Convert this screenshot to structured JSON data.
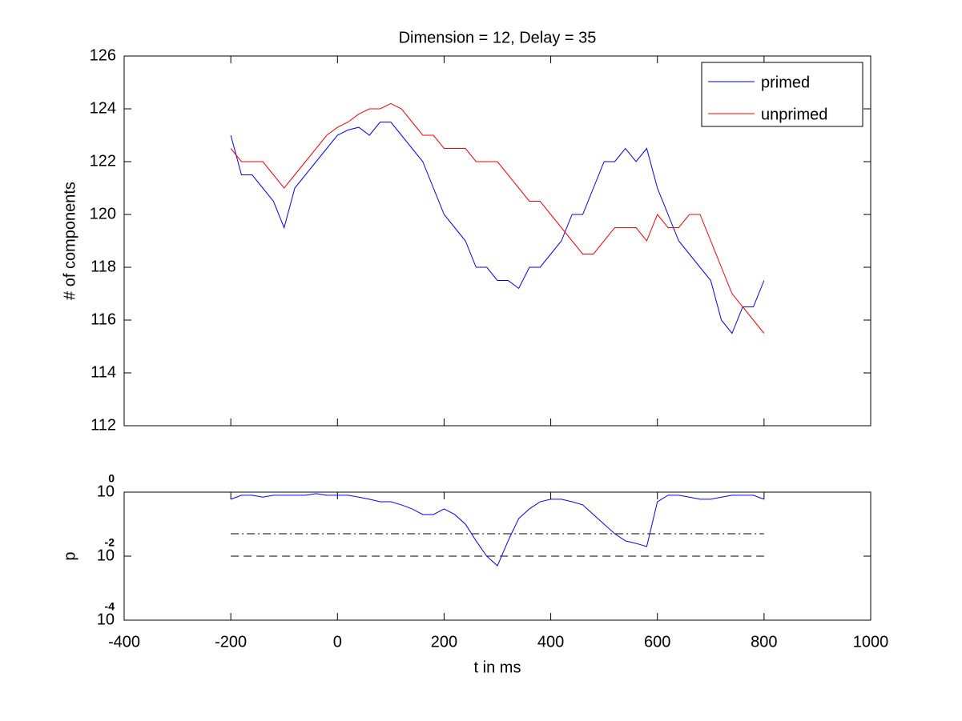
{
  "chart_data": [
    {
      "type": "line",
      "title": "Dimension  = 12, Delay = 35",
      "ylabel": "# of components",
      "x": [
        -200,
        -180,
        -160,
        -140,
        -120,
        -100,
        -80,
        -60,
        -40,
        -20,
        0,
        20,
        40,
        60,
        80,
        100,
        120,
        140,
        160,
        180,
        200,
        220,
        240,
        260,
        280,
        300,
        320,
        340,
        360,
        380,
        400,
        420,
        440,
        460,
        480,
        500,
        520,
        540,
        560,
        580,
        600,
        620,
        640,
        660,
        680,
        700,
        720,
        740,
        760,
        780,
        800
      ],
      "series": [
        {
          "name": "primed",
          "color": "#0000ff",
          "values": [
            123.0,
            121.5,
            121.5,
            121.0,
            120.5,
            119.5,
            121.0,
            121.5,
            122.0,
            122.5,
            123.0,
            123.2,
            123.3,
            123.0,
            123.5,
            123.5,
            123.0,
            122.5,
            122.0,
            121.0,
            120.0,
            119.5,
            119.0,
            118.0,
            118.0,
            117.5,
            117.5,
            117.2,
            118.0,
            118.0,
            118.5,
            119.0,
            120.0,
            120.0,
            121.0,
            122.0,
            122.0,
            122.5,
            122.0,
            122.5,
            121.0,
            120.0,
            119.0,
            118.5,
            118.0,
            117.5,
            116.0,
            115.5,
            116.5,
            116.5,
            117.5
          ]
        },
        {
          "name": "unprimed",
          "color": "#ff0000",
          "values": [
            122.5,
            122.0,
            122.0,
            122.0,
            121.5,
            121.0,
            121.5,
            122.0,
            122.5,
            123.0,
            123.3,
            123.5,
            123.8,
            124.0,
            124.0,
            124.2,
            124.0,
            123.5,
            123.0,
            123.0,
            122.5,
            122.5,
            122.5,
            122.0,
            122.0,
            122.0,
            121.5,
            121.0,
            120.5,
            120.5,
            120.0,
            119.5,
            119.0,
            118.5,
            118.5,
            119.0,
            119.5,
            119.5,
            119.5,
            119.0,
            120.0,
            119.5,
            119.5,
            120.0,
            120.0,
            119.0,
            118.0,
            117.0,
            116.5,
            116.0,
            115.5
          ]
        }
      ],
      "xlim": [
        -400,
        1000
      ],
      "xticks": [
        -400,
        -200,
        0,
        200,
        400,
        600,
        800,
        1000
      ],
      "ylim": [
        112,
        126
      ],
      "yticks": [
        112,
        114,
        116,
        118,
        120,
        122,
        124,
        126
      ],
      "legend": "upper right"
    },
    {
      "type": "line",
      "ylabel": "p",
      "xlabel": "t in ms",
      "log_y": true,
      "x": [
        -200,
        -180,
        -160,
        -140,
        -120,
        -100,
        -80,
        -60,
        -40,
        -20,
        0,
        20,
        40,
        60,
        80,
        100,
        120,
        140,
        160,
        180,
        200,
        220,
        240,
        260,
        280,
        300,
        320,
        340,
        360,
        380,
        400,
        420,
        440,
        460,
        480,
        500,
        520,
        540,
        560,
        580,
        600,
        620,
        640,
        660,
        680,
        700,
        720,
        740,
        760,
        780,
        800
      ],
      "series": [
        {
          "color": "#0000ff",
          "values": [
            0.6,
            0.8,
            0.8,
            0.7,
            0.8,
            0.8,
            0.8,
            0.8,
            0.9,
            0.8,
            0.8,
            0.8,
            0.7,
            0.6,
            0.5,
            0.5,
            0.4,
            0.3,
            0.2,
            0.2,
            0.3,
            0.2,
            0.1,
            0.03,
            0.01,
            0.005,
            0.03,
            0.15,
            0.3,
            0.5,
            0.6,
            0.6,
            0.5,
            0.4,
            0.2,
            0.1,
            0.05,
            0.03,
            0.025,
            0.02,
            0.5,
            0.8,
            0.8,
            0.7,
            0.6,
            0.6,
            0.7,
            0.8,
            0.8,
            0.8,
            0.6
          ]
        }
      ],
      "hlines": [
        {
          "value": 0.05,
          "style": "dashdot",
          "x": [
            -200,
            800
          ]
        },
        {
          "value": 0.01,
          "style": "dashed",
          "x": [
            -200,
            800
          ]
        }
      ],
      "xlim": [
        -400,
        1000
      ],
      "xticks": [
        -400,
        -200,
        0,
        200,
        400,
        600,
        800,
        1000
      ],
      "ylim": [
        0.0001,
        1
      ],
      "yticks": [
        {
          "value": 0.0001,
          "label": "10",
          "exponent": "-4"
        },
        {
          "value": 0.01,
          "label": "10",
          "exponent": "-2"
        },
        {
          "value": 1,
          "label": "10",
          "exponent": "0"
        }
      ]
    }
  ]
}
